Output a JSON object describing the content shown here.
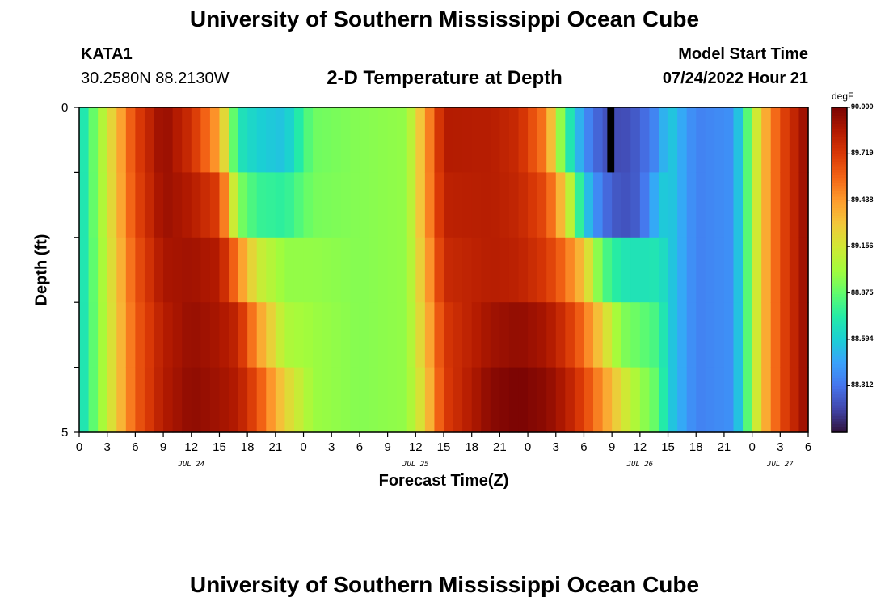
{
  "header": {
    "title": "University of Southern Mississippi Ocean Cube",
    "station_id": "KATA1",
    "coords": "30.2580N  88.2130W",
    "model_start_label": "Model Start Time",
    "model_start_value": "07/24/2022 Hour 21"
  },
  "footer": {
    "title": "University of Southern Mississippi Ocean Cube"
  },
  "chart_data": {
    "type": "heatmap",
    "title": "2-D Temperature at Depth",
    "xlabel": "Forecast Time(Z)",
    "ylabel": "Depth (ft)",
    "ylim": [
      0,
      5
    ],
    "y_ticks": [
      "0",
      "5"
    ],
    "x_hours_start": 0,
    "x_hours_end": 78,
    "x_tick_labels": [
      "0",
      "3",
      "6",
      "9",
      "12",
      "15",
      "18",
      "21",
      "0",
      "3",
      "6",
      "9",
      "12",
      "15",
      "18",
      "21",
      "0",
      "3",
      "6",
      "9",
      "12",
      "15",
      "18",
      "21",
      "0",
      "3",
      "6"
    ],
    "date_labels": [
      {
        "hour": 12,
        "label": "JUL 24"
      },
      {
        "hour": 36,
        "label": "JUL 25"
      },
      {
        "hour": 60,
        "label": "JUL 26"
      },
      {
        "hour": 75,
        "label": "JUL 27"
      }
    ],
    "depth_levels": [
      0,
      1,
      2,
      3,
      4,
      5
    ],
    "colorbar": {
      "unit": "degF",
      "min": 88.03,
      "max": 90.0,
      "tick_labels": [
        "90.000",
        "89.719",
        "89.438",
        "89.156",
        "88.875",
        "88.594",
        "88.312"
      ],
      "colors": [
        "#30123b",
        "#4145ab",
        "#4675ed",
        "#39a2fc",
        "#1bcfd4",
        "#24eca6",
        "#61fc6c",
        "#a4fc3b",
        "#d1e834",
        "#f3c63a",
        "#fe9b2d",
        "#f36315",
        "#d93806",
        "#b11901",
        "#7a0403"
      ]
    },
    "temperature_keyframes": [
      {
        "hour": 0,
        "row_values_top_to_bottom": [
          88.62,
          88.62,
          88.62,
          88.62,
          88.62
        ]
      },
      {
        "hour": 6,
        "row_values_top_to_bottom": [
          89.68,
          89.66,
          89.62,
          89.6,
          89.6
        ]
      },
      {
        "hour": 9,
        "row_values_top_to_bottom": [
          89.94,
          89.92,
          89.88,
          89.84,
          89.85
        ]
      },
      {
        "hour": 12,
        "row_values_top_to_bottom": [
          89.76,
          89.85,
          89.9,
          89.93,
          89.95
        ]
      },
      {
        "hour": 15,
        "row_values_top_to_bottom": [
          89.4,
          89.7,
          89.85,
          89.88,
          89.9
        ]
      },
      {
        "hour": 17,
        "row_values_top_to_bottom": [
          88.7,
          88.95,
          89.5,
          89.8,
          89.85
        ]
      },
      {
        "hour": 19,
        "row_values_top_to_bottom": [
          88.6,
          88.78,
          89.15,
          89.45,
          89.65
        ]
      },
      {
        "hour": 22,
        "row_values_top_to_bottom": [
          88.55,
          88.75,
          88.98,
          89.05,
          89.25
        ]
      },
      {
        "hour": 25,
        "row_values_top_to_bottom": [
          88.9,
          88.92,
          88.98,
          89.0,
          89.0
        ]
      },
      {
        "hour": 30,
        "row_values_top_to_bottom": [
          88.95,
          88.95,
          88.95,
          88.95,
          88.95
        ]
      },
      {
        "hour": 35,
        "row_values_top_to_bottom": [
          88.98,
          88.98,
          88.98,
          88.98,
          88.98
        ]
      },
      {
        "hour": 37,
        "row_values_top_to_bottom": [
          89.4,
          89.4,
          89.35,
          89.3,
          89.25
        ]
      },
      {
        "hour": 39,
        "row_values_top_to_bottom": [
          89.85,
          89.82,
          89.78,
          89.72,
          89.7
        ]
      },
      {
        "hour": 44,
        "row_values_top_to_bottom": [
          89.84,
          89.84,
          89.84,
          89.9,
          89.96
        ]
      },
      {
        "hour": 47,
        "row_values_top_to_bottom": [
          89.78,
          89.8,
          89.82,
          89.94,
          90.0
        ]
      },
      {
        "hour": 50,
        "row_values_top_to_bottom": [
          89.5,
          89.65,
          89.72,
          89.88,
          89.95
        ]
      },
      {
        "hour": 52,
        "row_values_top_to_bottom": [
          88.8,
          89.25,
          89.55,
          89.75,
          89.85
        ]
      },
      {
        "hour": 54,
        "row_values_top_to_bottom": [
          88.4,
          88.6,
          89.3,
          89.55,
          89.68
        ]
      },
      {
        "hour": 56,
        "row_values_top_to_bottom": [
          88.22,
          88.3,
          88.85,
          89.25,
          89.45
        ]
      },
      {
        "hour": 58,
        "row_values_top_to_bottom": [
          88.18,
          88.2,
          88.7,
          88.95,
          89.2
        ]
      },
      {
        "hour": 60,
        "row_values_top_to_bottom": [
          88.25,
          88.25,
          88.68,
          88.88,
          89.0
        ]
      },
      {
        "hour": 62,
        "row_values_top_to_bottom": [
          88.4,
          88.55,
          88.7,
          88.8,
          88.85
        ]
      },
      {
        "hour": 63,
        "row_values_top_to_bottom": [
          88.6,
          88.6,
          88.6,
          88.6,
          88.6
        ]
      },
      {
        "hour": 66,
        "row_values_top_to_bottom": [
          88.35,
          88.35,
          88.35,
          88.35,
          88.35
        ]
      },
      {
        "hour": 70,
        "row_values_top_to_bottom": [
          88.4,
          88.4,
          88.4,
          88.4,
          88.4
        ]
      },
      {
        "hour": 71,
        "row_values_top_to_bottom": [
          88.7,
          88.7,
          88.7,
          88.7,
          88.7
        ]
      },
      {
        "hour": 73,
        "row_values_top_to_bottom": [
          89.3,
          89.3,
          89.3,
          89.3,
          89.3
        ]
      },
      {
        "hour": 75,
        "row_values_top_to_bottom": [
          89.65,
          89.65,
          89.65,
          89.65,
          89.65
        ]
      },
      {
        "hour": 78,
        "row_values_top_to_bottom": [
          89.95,
          89.95,
          89.95,
          89.95,
          89.95
        ]
      }
    ],
    "black_marker": {
      "hour_start": 56.5,
      "hour_end": 57.0,
      "depth_start": 0,
      "depth_end": 1
    }
  }
}
